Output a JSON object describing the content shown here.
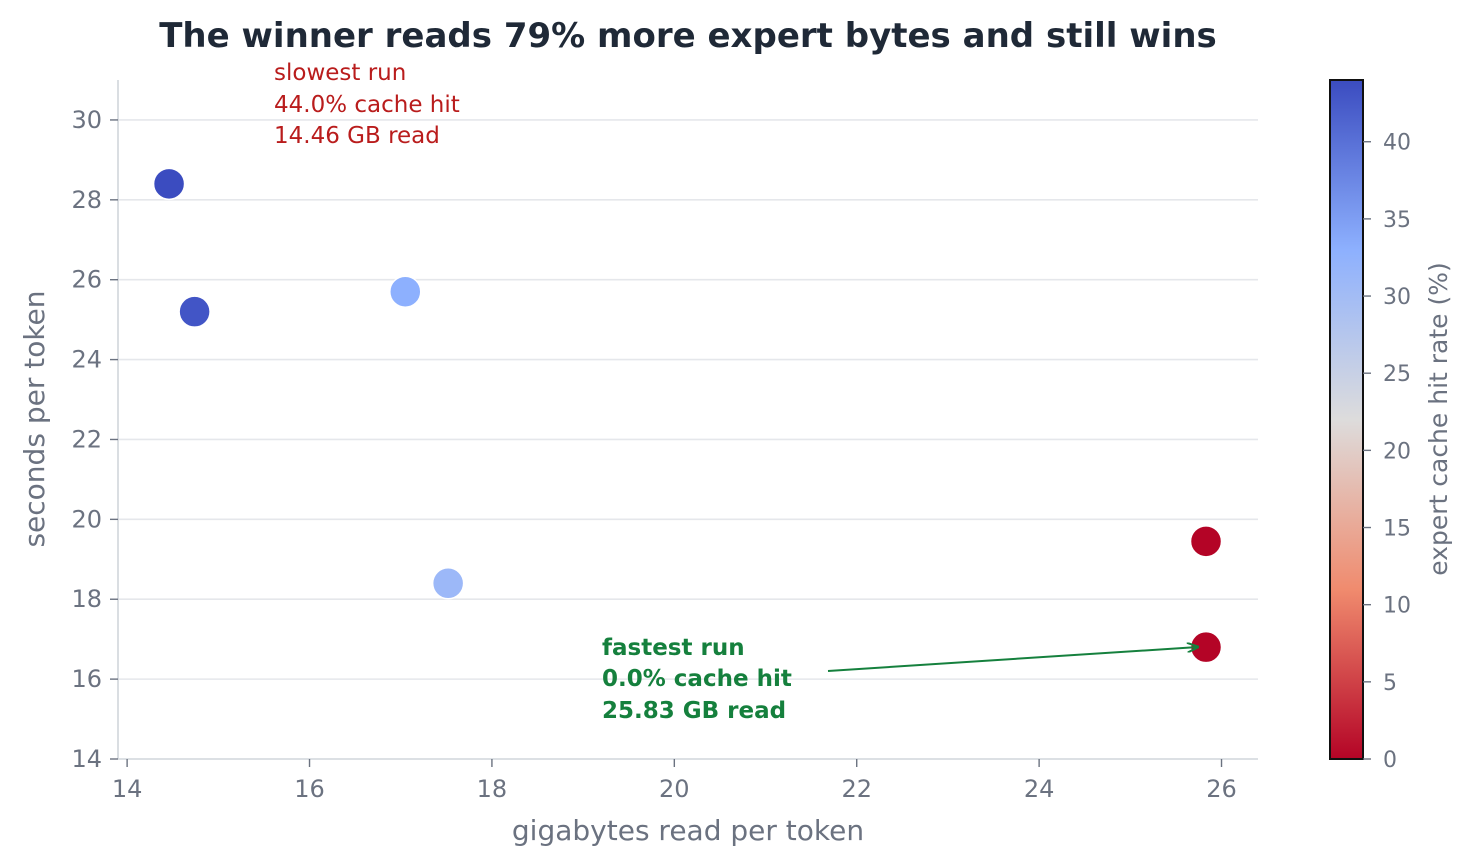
{
  "chart_data": {
    "type": "scatter",
    "title": "The winner reads 79% more expert bytes and still wins",
    "xlabel": "gigabytes read per token",
    "ylabel": "seconds per token",
    "xlim": [
      13.9,
      26.4
    ],
    "ylim": [
      14,
      31
    ],
    "xticks": [
      14,
      16,
      18,
      20,
      22,
      24,
      26
    ],
    "yticks": [
      14,
      16,
      18,
      20,
      22,
      24,
      26,
      28,
      30
    ],
    "grid": "horizontal",
    "points": [
      {
        "x": 14.46,
        "y": 28.4,
        "cache_hit": 44.0
      },
      {
        "x": 14.74,
        "y": 25.2,
        "cache_hit": 43.0
      },
      {
        "x": 17.05,
        "y": 25.7,
        "cache_hit": 33.0
      },
      {
        "x": 17.52,
        "y": 18.4,
        "cache_hit": 31.0
      },
      {
        "x": 25.83,
        "y": 19.45,
        "cache_hit": 0.0
      },
      {
        "x": 25.83,
        "y": 16.8,
        "cache_hit": 0.0
      }
    ],
    "colorbar": {
      "label": "expert cache hit rate (%)",
      "range": [
        0,
        44
      ],
      "ticks": [
        0,
        5,
        10,
        15,
        20,
        25,
        30,
        35,
        40
      ],
      "colormap": "coolwarm_r",
      "colors": [
        "#b40426",
        "#f08b6e",
        "#dddcdc",
        "#8db0fe",
        "#3b4cc0"
      ]
    },
    "annotations": {
      "slowest": {
        "lines": [
          "slowest run",
          "44.0% cache hit",
          "14.46 GB read"
        ],
        "color": "#b91c1c"
      },
      "fastest": {
        "lines": [
          "fastest run",
          "0.0% cache hit",
          "25.83 GB read"
        ],
        "color": "#15803d"
      }
    }
  }
}
